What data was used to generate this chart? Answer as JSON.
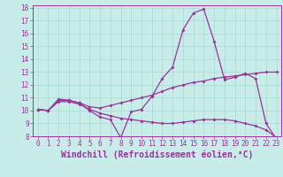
{
  "xlabel": "Windchill (Refroidissement éolien,°C)",
  "bg_color": "#c8ece8",
  "grid_color": "#a8d8d4",
  "line_color": "#993399",
  "xlim": [
    -0.5,
    23.5
  ],
  "ylim": [
    8,
    18.2
  ],
  "yticks": [
    8,
    9,
    10,
    11,
    12,
    13,
    14,
    15,
    16,
    17,
    18
  ],
  "xticks": [
    0,
    1,
    2,
    3,
    4,
    5,
    6,
    7,
    8,
    9,
    10,
    11,
    12,
    13,
    14,
    15,
    16,
    17,
    18,
    19,
    20,
    21,
    22,
    23
  ],
  "line1": [
    10.1,
    10.0,
    10.9,
    10.8,
    10.6,
    10.0,
    9.5,
    9.3,
    7.9,
    9.9,
    10.1,
    11.1,
    12.5,
    13.4,
    16.3,
    17.6,
    17.9,
    15.4,
    12.4,
    12.6,
    12.9,
    12.5,
    9.0,
    7.8
  ],
  "line2": [
    10.1,
    10.0,
    10.8,
    10.8,
    10.6,
    10.3,
    10.2,
    10.4,
    10.6,
    10.8,
    11.0,
    11.2,
    11.5,
    11.8,
    12.0,
    12.2,
    12.3,
    12.5,
    12.6,
    12.7,
    12.8,
    12.9,
    13.0,
    13.0
  ],
  "line3": [
    10.1,
    10.0,
    10.7,
    10.7,
    10.5,
    10.1,
    9.8,
    9.6,
    9.4,
    9.3,
    9.2,
    9.1,
    9.0,
    9.0,
    9.1,
    9.2,
    9.3,
    9.3,
    9.3,
    9.2,
    9.0,
    8.8,
    8.5,
    7.9
  ],
  "font_color": "#993399",
  "tick_labelsize": 5.5,
  "xlabel_fontsize": 7.0,
  "marker_size": 2.0,
  "linewidth": 0.9
}
